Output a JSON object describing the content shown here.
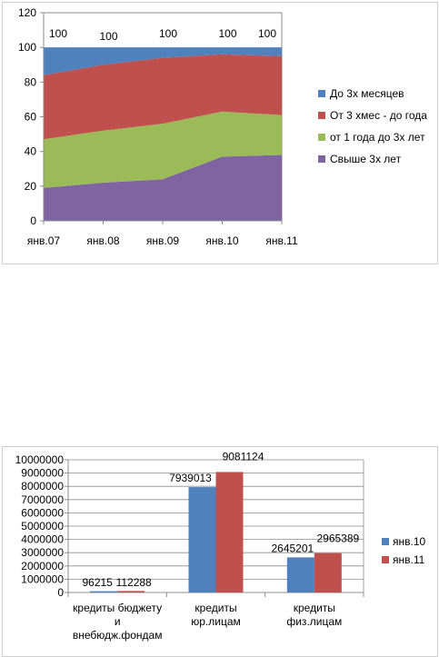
{
  "chart_data": [
    {
      "type": "area",
      "stacked": true,
      "x": [
        "янв.07",
        "янв.08",
        "янв.09",
        "янв.10",
        "янв.11"
      ],
      "ylim": [
        0,
        120
      ],
      "yticks": [
        0,
        20,
        40,
        60,
        80,
        100,
        120
      ],
      "grid": false,
      "legend_position": "right",
      "series": [
        {
          "name": "Свыше 3х лет",
          "color": "#8064a2",
          "values": [
            19,
            22,
            24,
            37,
            38
          ]
        },
        {
          "name": "от 1 года до 3х лет",
          "color": "#9bbb59",
          "values": [
            28,
            30,
            32,
            26,
            23
          ]
        },
        {
          "name": "От 3 хмес - до года",
          "color": "#c0504d",
          "values": [
            37,
            38,
            38,
            33,
            34
          ]
        },
        {
          "name": "До 3х месяцев",
          "color": "#4f81bd",
          "values": [
            16,
            10,
            6,
            4,
            5
          ]
        }
      ],
      "totals": [
        "100",
        "100",
        "100",
        "100",
        "100"
      ]
    },
    {
      "type": "bar",
      "categories": [
        [
          "кредиты бюджету",
          "и",
          "внебюдж.фондам"
        ],
        [
          "кредиты",
          "юр.лицам"
        ],
        [
          "кредиты",
          "физ.лицам"
        ]
      ],
      "ylim": [
        0,
        10000000
      ],
      "yticks": [
        0,
        1000000,
        2000000,
        3000000,
        4000000,
        5000000,
        6000000,
        7000000,
        8000000,
        9000000,
        10000000
      ],
      "grid": true,
      "legend_position": "right",
      "series": [
        {
          "name": "янв.10",
          "color": "#4f81bd",
          "values": [
            96215,
            7939013,
            2645201
          ]
        },
        {
          "name": "янв.11",
          "color": "#c0504d",
          "values": [
            112288,
            9081124,
            2965389
          ]
        }
      ]
    }
  ]
}
